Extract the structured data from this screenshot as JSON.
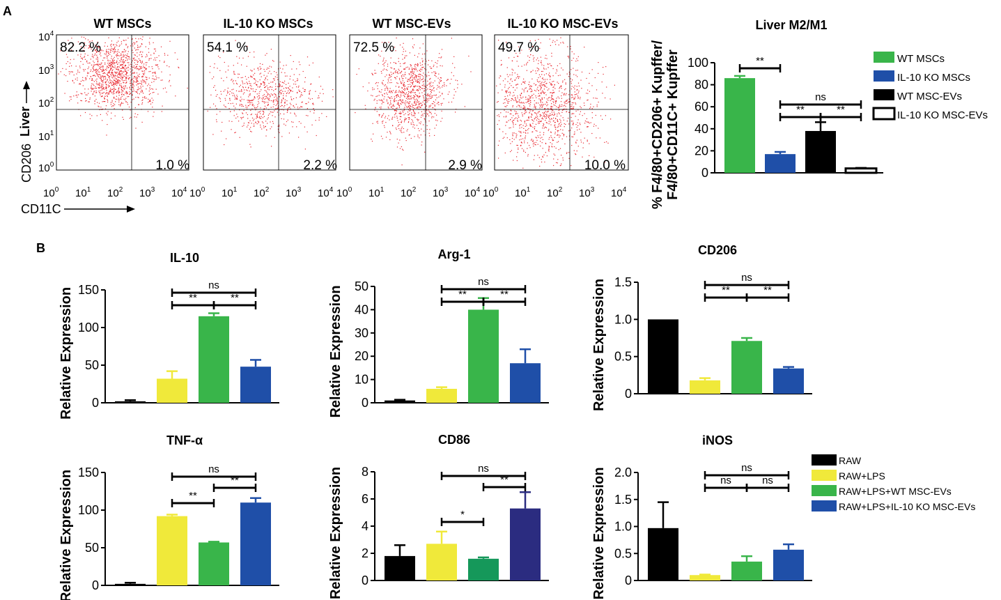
{
  "panel_labels": {
    "a": "A",
    "b": "B"
  },
  "flow": {
    "titles": [
      "WT MSCs",
      "IL-10 KO MSCs",
      "WT MSC-EVs",
      "IL-10 KO MSC-EVs"
    ],
    "ul_pct": [
      "82.2 %",
      "54.1 %",
      "72.5 %",
      "49.7 %"
    ],
    "lr_pct": [
      "1.0 %",
      "2.2 %",
      "2.9 %",
      "10.0 %"
    ],
    "ylab_tissue": "Liver",
    "ylab_marker": "CD206",
    "xlab_marker": "CD11C",
    "y_ticks": [
      {
        "base": "10",
        "exp": "4"
      },
      {
        "base": "10",
        "exp": "3"
      },
      {
        "base": "10",
        "exp": "2"
      },
      {
        "base": "10",
        "exp": "1"
      },
      {
        "base": "10",
        "exp": "0"
      }
    ],
    "x_ticks": [
      {
        "base": "10",
        "exp": "0"
      },
      {
        "base": "10",
        "exp": "1"
      },
      {
        "base": "10",
        "exp": "2"
      },
      {
        "base": "10",
        "exp": "3"
      },
      {
        "base": "10",
        "exp": "4"
      }
    ]
  },
  "chart_data": [
    {
      "type": "bar",
      "title": "Liver M2/M1",
      "ylabel_line1": "% F4/80+CD206+ Kupffer/",
      "ylabel_line2": "F4/80+CD11C+ Kupffer",
      "categories": [
        "WT MSCs",
        "IL-10 KO MSCs",
        "WT MSC-EVs",
        "IL-10 KO MSC-EVs"
      ],
      "values": [
        86,
        17,
        38,
        4
      ],
      "errors": [
        2,
        2,
        8,
        0.5
      ],
      "colors": [
        "#39b54a",
        "#1f4fa8",
        "#000000",
        "#ffffff"
      ],
      "ylim": [
        0,
        100
      ],
      "yticks": [
        "0",
        "20",
        "40",
        "60",
        "80",
        "100"
      ],
      "legend": [
        "WT MSCs",
        "IL-10 KO MSCs",
        "WT MSC-EVs",
        "IL-10 KO MSC-EVs"
      ],
      "significance": [
        {
          "from": 0,
          "to": 1,
          "label": "**"
        },
        {
          "from": 1,
          "to": 2,
          "label": "**"
        },
        {
          "from": 2,
          "to": 3,
          "label": "**"
        },
        {
          "from": 1,
          "to": 3,
          "label": "ns"
        }
      ]
    },
    {
      "type": "bar",
      "title": "IL-10",
      "ylabel": "Relative Expression",
      "categories": [
        "RAW",
        "RAW+LPS",
        "RAW+LPS+WT MSC-EVs",
        "RAW+LPS+IL-10 KO MSC-EVs"
      ],
      "values": [
        2,
        32,
        115,
        48
      ],
      "errors": [
        1.5,
        10,
        4,
        9
      ],
      "colors": [
        "#000000",
        "#f0e93a",
        "#39b54a",
        "#1f4fa8"
      ],
      "ylim": [
        0,
        150
      ],
      "yticks": [
        "0",
        "50",
        "100",
        "150"
      ],
      "significance": [
        {
          "from": 1,
          "to": 2,
          "label": "**"
        },
        {
          "from": 2,
          "to": 3,
          "label": "**"
        },
        {
          "from": 1,
          "to": 3,
          "label": "ns"
        }
      ]
    },
    {
      "type": "bar",
      "title": "Arg-1",
      "ylabel": "Relative Expression",
      "categories": [
        "RAW",
        "RAW+LPS",
        "RAW+LPS+WT MSC-EVs",
        "RAW+LPS+IL-10 KO MSC-EVs"
      ],
      "values": [
        1,
        6,
        40,
        17
      ],
      "errors": [
        0.3,
        0.7,
        5,
        6
      ],
      "colors": [
        "#000000",
        "#f0e93a",
        "#39b54a",
        "#1f4fa8"
      ],
      "ylim": [
        0,
        50
      ],
      "yticks": [
        "0",
        "10",
        "20",
        "30",
        "40",
        "50"
      ],
      "significance": [
        {
          "from": 1,
          "to": 2,
          "label": "**"
        },
        {
          "from": 2,
          "to": 3,
          "label": "**"
        },
        {
          "from": 1,
          "to": 3,
          "label": "ns"
        }
      ]
    },
    {
      "type": "bar",
      "title": "CD206",
      "ylabel": "Relative Expression",
      "categories": [
        "RAW",
        "RAW+LPS",
        "RAW+LPS+WT MSC-EVs",
        "RAW+LPS+IL-10 KO MSC-EVs"
      ],
      "values": [
        1.0,
        0.18,
        0.71,
        0.34
      ],
      "errors": [
        0,
        0.03,
        0.04,
        0.02
      ],
      "colors": [
        "#000000",
        "#f0e93a",
        "#39b54a",
        "#1f4fa8"
      ],
      "ylim": [
        0,
        1.5
      ],
      "yticks": [
        "0",
        "0.5",
        "1.0",
        "1.5"
      ],
      "significance": [
        {
          "from": 1,
          "to": 2,
          "label": "**"
        },
        {
          "from": 2,
          "to": 3,
          "label": "**"
        },
        {
          "from": 1,
          "to": 3,
          "label": "ns"
        }
      ]
    },
    {
      "type": "bar",
      "title": "TNF-α",
      "ylabel": "Relative Expression",
      "categories": [
        "RAW",
        "RAW+LPS",
        "RAW+LPS+WT MSC-EVs",
        "RAW+LPS+IL-10 KO MSC-EVs"
      ],
      "values": [
        2,
        92,
        57,
        110
      ],
      "errors": [
        1.5,
        2,
        1,
        6
      ],
      "colors": [
        "#000000",
        "#f0e93a",
        "#39b54a",
        "#1f4fa8"
      ],
      "ylim": [
        0,
        150
      ],
      "yticks": [
        "0",
        "50",
        "100",
        "150"
      ],
      "significance": [
        {
          "from": 1,
          "to": 2,
          "label": "**"
        },
        {
          "from": 2,
          "to": 3,
          "label": "**"
        },
        {
          "from": 1,
          "to": 3,
          "label": "ns"
        }
      ]
    },
    {
      "type": "bar",
      "title": "CD86",
      "ylabel": "Relative Expression",
      "categories": [
        "RAW",
        "RAW+LPS",
        "RAW+LPS+WT MSC-EVs",
        "RAW+LPS+IL-10 KO MSC-EVs"
      ],
      "values": [
        1.8,
        2.7,
        1.6,
        5.3
      ],
      "errors": [
        0.8,
        0.9,
        0.1,
        1.2
      ],
      "colors": [
        "#000000",
        "#f0e93a",
        "#15985a",
        "#2b2c80"
      ],
      "ylim": [
        0,
        8
      ],
      "yticks": [
        "0",
        "2",
        "4",
        "6",
        "8"
      ],
      "significance": [
        {
          "from": 1,
          "to": 2,
          "label": "*"
        },
        {
          "from": 2,
          "to": 3,
          "label": "**"
        },
        {
          "from": 1,
          "to": 3,
          "label": "ns"
        }
      ]
    },
    {
      "type": "bar",
      "title": "iNOS",
      "ylabel": "Relative Expression",
      "categories": [
        "RAW",
        "RAW+LPS",
        "RAW+LPS+WT MSC-EVs",
        "RAW+LPS+IL-10 KO MSC-EVs"
      ],
      "values": [
        0.97,
        0.1,
        0.35,
        0.57
      ],
      "errors": [
        0.48,
        0.01,
        0.1,
        0.1
      ],
      "colors": [
        "#000000",
        "#f0e93a",
        "#39b54a",
        "#1f4fa8"
      ],
      "ylim": [
        0,
        2.0
      ],
      "yticks": [
        "0",
        "0.5",
        "1.0",
        "1.5",
        "2.0"
      ],
      "significance": [
        {
          "from": 1,
          "to": 2,
          "label": "ns"
        },
        {
          "from": 2,
          "to": 3,
          "label": "ns"
        },
        {
          "from": 1,
          "to": 3,
          "label": "ns"
        }
      ]
    }
  ],
  "legend_b": {
    "labels": [
      "RAW",
      "RAW+LPS",
      "RAW+LPS+WT MSC-EVs",
      "RAW+LPS+IL-10 KO MSC-EVs"
    ],
    "colors": [
      "#000000",
      "#f0e93a",
      "#39b54a",
      "#1f4fa8"
    ]
  },
  "colors": {
    "dots": "#e8242c",
    "axis": "#000000"
  }
}
